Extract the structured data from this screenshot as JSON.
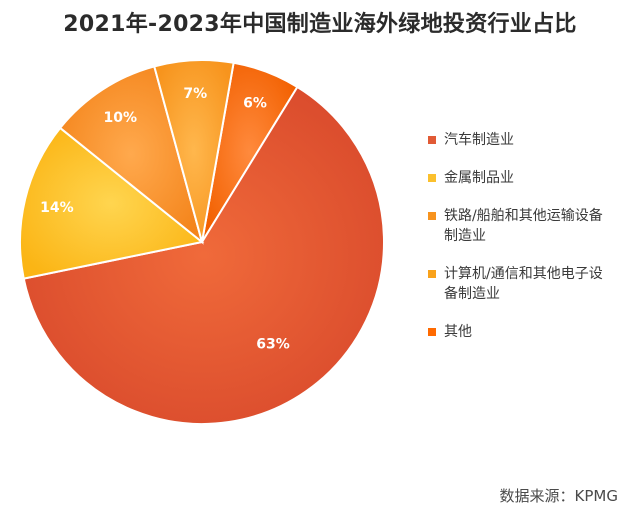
{
  "title": "2021年-2023年中国制造业海外绿地投资行业占比",
  "source": "数据来源：KPMG",
  "chart_data": {
    "type": "pie",
    "categories": [
      "汽车制造业",
      "金属制品业",
      "铁路/船舶和其他运输设备制造业",
      "计算机/通信和其他电子设备制造业",
      "其他"
    ],
    "values": [
      63,
      14,
      10,
      7,
      6
    ],
    "labels": [
      "63%",
      "14%",
      "10%",
      "7%",
      "6%"
    ],
    "colors": [
      "#e15a35",
      "#fbc02d",
      "#f7931e",
      "#f9a21b",
      "#ff6a00"
    ],
    "legend": "right",
    "legend_lines": [
      [
        "汽车制造业"
      ],
      [
        "金属制品业"
      ],
      [
        "铁路/船舶和其他运输设备",
        "制造业"
      ],
      [
        "计算机/通信和其他电子设",
        "备制造业"
      ],
      [
        "其他"
      ]
    ]
  }
}
